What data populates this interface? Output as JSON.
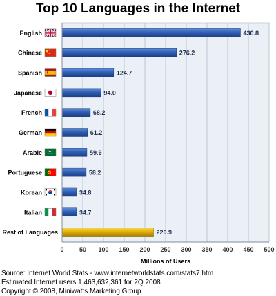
{
  "chart_data": {
    "type": "bar",
    "orientation": "horizontal",
    "title": "Top 10 Languages in the Internet",
    "xlabel": "Millions of Users",
    "ylabel": "",
    "xlim": [
      0,
      500
    ],
    "xticks": [
      "0",
      "50",
      "100",
      "150",
      "200",
      "250",
      "300",
      "350",
      "400",
      "450",
      "500"
    ],
    "grid": true,
    "categories": [
      "English",
      "Chinese",
      "Spanish",
      "Japanese",
      "French",
      "German",
      "Arabic",
      "Portuguese",
      "Korean",
      "Italian",
      "Rest of Languages"
    ],
    "values": [
      430.8,
      276.2,
      124.7,
      94.0,
      68.2,
      61.2,
      59.9,
      58.2,
      34.8,
      34.7,
      220.9
    ],
    "value_labels": [
      "430.8",
      "276.2",
      "124.7",
      "94.0",
      "68.2",
      "61.2",
      "59.9",
      "58.2",
      "34.8",
      "34.7",
      "220.9"
    ],
    "flag_icons": [
      "uk-flag-icon",
      "china-flag-icon",
      "spain-flag-icon",
      "japan-flag-icon",
      "france-flag-icon",
      "germany-flag-icon",
      "saudi-arabia-flag-icon",
      "portugal-flag-icon",
      "south-korea-flag-icon",
      "italy-flag-icon",
      ""
    ],
    "colors": {
      "bar": "#2f5fb3",
      "highlight_bar": "#e2b20a",
      "plot_bg": "#ebf0f7",
      "grid": "#b9c6d6"
    }
  },
  "source": {
    "line1": "Source: Internet World Stats - www.internetworldstats.com/stats7.htm",
    "line2": "Estimated Internet users 1,463,632,361 for 2Q 2008",
    "line3": "Copyright © 2008, Miniwatts Marketing Group"
  }
}
